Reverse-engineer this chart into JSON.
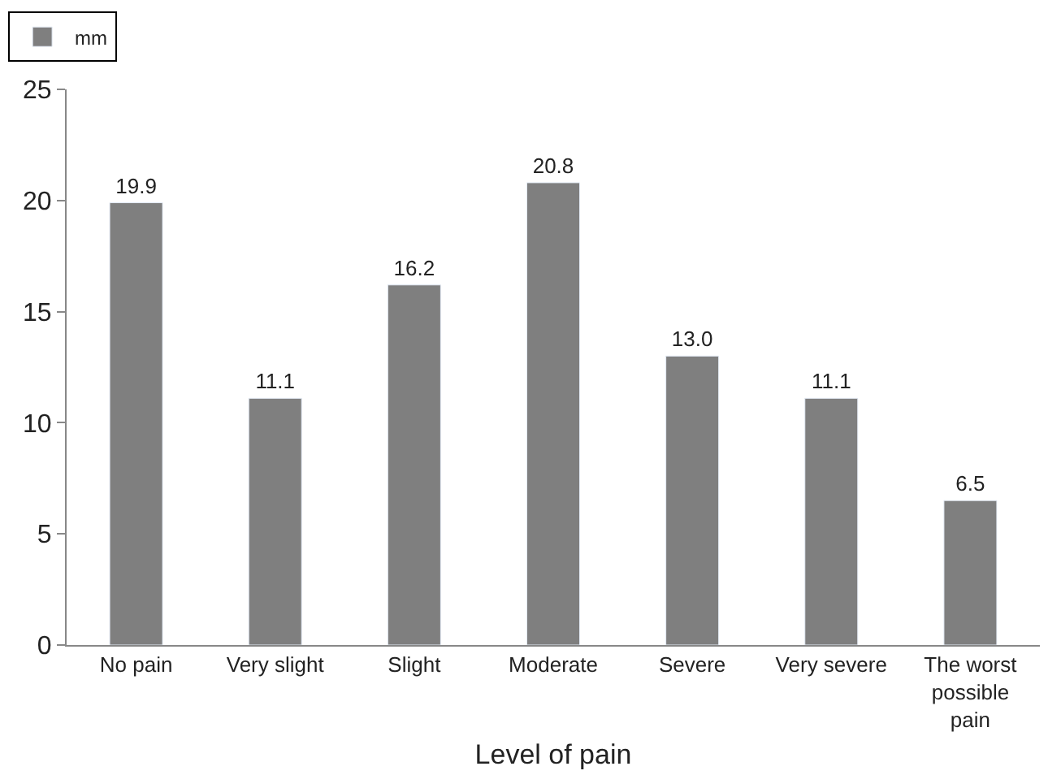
{
  "chart_data": {
    "type": "bar",
    "xlabel": "Level of pain",
    "categories": [
      "No pain",
      "Very slight",
      "Slight",
      "Moderate",
      "Severe",
      "Very severe",
      "The worst possible pain"
    ],
    "series": [
      {
        "name": "mm",
        "color": "#7f7f7f",
        "values": [
          19.9,
          11.1,
          16.2,
          20.8,
          13.0,
          11.1,
          6.5
        ],
        "value_labels": [
          "19.9",
          "11.1",
          "16.2",
          "20.8",
          "13.0",
          "11.1",
          "6.5"
        ]
      }
    ],
    "ylim": [
      0,
      25
    ],
    "yticks": [
      0,
      5,
      10,
      15,
      20,
      25
    ],
    "legend": "top left"
  }
}
